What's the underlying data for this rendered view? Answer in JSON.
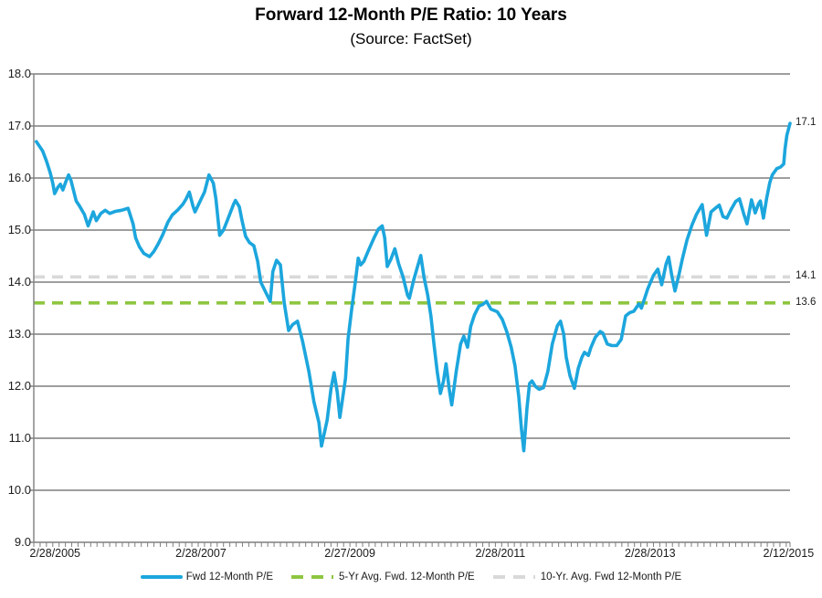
{
  "title": "Forward 12-Month P/E Ratio: 10 Years",
  "subtitle": "(Source: FactSet)",
  "chart_data": {
    "type": "line",
    "title": "Forward 12-Month P/E Ratio: 10 Years",
    "subtitle": "(Source: FactSet)",
    "grid": "horizontal",
    "legend_position": "bottom",
    "grid_color": "#7F7F7F",
    "x_domain": [
      0,
      119.6
    ],
    "x_unit": "months since 2/28/2005",
    "y_axis": {
      "min": 9,
      "max": 18,
      "step": 1
    },
    "x_axis": {
      "minor_tick_every_months": 1,
      "ticks": [
        {
          "label": "2/28/2005",
          "f": 0.028
        },
        {
          "label": "2/28/2007",
          "f": 0.221
        },
        {
          "label": "2/27/2009",
          "f": 0.418
        },
        {
          "label": "2/28/2011",
          "f": 0.617
        },
        {
          "label": "2/28/2013",
          "f": 0.815
        },
        {
          "label": "2/12/2015",
          "f": 0.998
        }
      ]
    },
    "series": [
      {
        "name": "Fwd 12-Month P/E",
        "color": "#1CA6DD",
        "style": "solid",
        "end_label": "17.1",
        "points": [
          [
            0.4,
            16.7
          ],
          [
            1.4,
            16.52
          ],
          [
            2.0,
            16.33
          ],
          [
            2.6,
            16.1
          ],
          [
            3.0,
            15.9
          ],
          [
            3.3,
            15.7
          ],
          [
            3.8,
            15.82
          ],
          [
            4.2,
            15.88
          ],
          [
            4.6,
            15.77
          ],
          [
            5.1,
            15.94
          ],
          [
            5.5,
            16.06
          ],
          [
            5.9,
            15.95
          ],
          [
            6.7,
            15.56
          ],
          [
            7.2,
            15.47
          ],
          [
            8.0,
            15.3
          ],
          [
            8.6,
            15.08
          ],
          [
            9.4,
            15.35
          ],
          [
            9.9,
            15.18
          ],
          [
            10.6,
            15.32
          ],
          [
            11.3,
            15.38
          ],
          [
            12.0,
            15.32
          ],
          [
            12.9,
            15.36
          ],
          [
            13.9,
            15.38
          ],
          [
            14.9,
            15.42
          ],
          [
            15.7,
            15.12
          ],
          [
            16.1,
            14.85
          ],
          [
            16.7,
            14.68
          ],
          [
            17.4,
            14.55
          ],
          [
            18.3,
            14.49
          ],
          [
            19.0,
            14.59
          ],
          [
            19.7,
            14.74
          ],
          [
            20.4,
            14.91
          ],
          [
            21.2,
            15.15
          ],
          [
            21.9,
            15.29
          ],
          [
            22.8,
            15.39
          ],
          [
            23.6,
            15.5
          ],
          [
            24.1,
            15.6
          ],
          [
            24.6,
            15.73
          ],
          [
            25.2,
            15.45
          ],
          [
            25.5,
            15.35
          ],
          [
            26.2,
            15.53
          ],
          [
            27.0,
            15.73
          ],
          [
            27.7,
            16.06
          ],
          [
            28.4,
            15.9
          ],
          [
            28.8,
            15.6
          ],
          [
            29.4,
            14.9
          ],
          [
            30.0,
            15.0
          ],
          [
            30.6,
            15.18
          ],
          [
            31.6,
            15.5
          ],
          [
            31.9,
            15.57
          ],
          [
            32.5,
            15.45
          ],
          [
            32.9,
            15.2
          ],
          [
            33.5,
            14.88
          ],
          [
            34.1,
            14.76
          ],
          [
            34.8,
            14.7
          ],
          [
            35.4,
            14.4
          ],
          [
            35.9,
            14.0
          ],
          [
            36.7,
            13.8
          ],
          [
            37.4,
            13.63
          ],
          [
            37.8,
            14.2
          ],
          [
            38.4,
            14.42
          ],
          [
            39.0,
            14.33
          ],
          [
            39.6,
            13.6
          ],
          [
            40.3,
            13.07
          ],
          [
            40.9,
            13.18
          ],
          [
            41.7,
            13.25
          ],
          [
            42.5,
            12.87
          ],
          [
            43.5,
            12.28
          ],
          [
            44.3,
            11.7
          ],
          [
            45.1,
            11.3
          ],
          [
            45.5,
            10.85
          ],
          [
            46.4,
            11.35
          ],
          [
            47.0,
            11.95
          ],
          [
            47.5,
            12.26
          ],
          [
            48.0,
            11.88
          ],
          [
            48.4,
            11.4
          ],
          [
            49.3,
            12.15
          ],
          [
            49.7,
            12.91
          ],
          [
            50.3,
            13.5
          ],
          [
            50.9,
            14.05
          ],
          [
            51.3,
            14.46
          ],
          [
            51.7,
            14.33
          ],
          [
            52.2,
            14.4
          ],
          [
            52.9,
            14.6
          ],
          [
            53.8,
            14.85
          ],
          [
            54.5,
            15.02
          ],
          [
            55.1,
            15.08
          ],
          [
            55.5,
            14.85
          ],
          [
            55.9,
            14.3
          ],
          [
            56.5,
            14.45
          ],
          [
            57.1,
            14.64
          ],
          [
            57.7,
            14.35
          ],
          [
            58.4,
            14.1
          ],
          [
            59.1,
            13.75
          ],
          [
            59.4,
            13.69
          ],
          [
            60.1,
            14.05
          ],
          [
            60.7,
            14.3
          ],
          [
            61.2,
            14.51
          ],
          [
            61.7,
            14.1
          ],
          [
            62.3,
            13.75
          ],
          [
            62.8,
            13.35
          ],
          [
            63.3,
            12.8
          ],
          [
            63.8,
            12.28
          ],
          [
            64.3,
            11.86
          ],
          [
            64.8,
            12.1
          ],
          [
            65.2,
            12.43
          ],
          [
            65.7,
            11.95
          ],
          [
            66.1,
            11.64
          ],
          [
            66.8,
            12.28
          ],
          [
            67.5,
            12.81
          ],
          [
            68.0,
            12.96
          ],
          [
            68.6,
            12.75
          ],
          [
            69.1,
            13.15
          ],
          [
            69.7,
            13.37
          ],
          [
            70.4,
            13.54
          ],
          [
            71.0,
            13.57
          ],
          [
            71.6,
            13.63
          ],
          [
            72.3,
            13.48
          ],
          [
            73.3,
            13.43
          ],
          [
            74.1,
            13.28
          ],
          [
            74.8,
            13.05
          ],
          [
            75.5,
            12.75
          ],
          [
            76.1,
            12.4
          ],
          [
            76.7,
            11.8
          ],
          [
            77.1,
            11.2
          ],
          [
            77.5,
            10.76
          ],
          [
            78.0,
            11.58
          ],
          [
            78.4,
            12.05
          ],
          [
            78.8,
            12.1
          ],
          [
            79.3,
            12.0
          ],
          [
            79.9,
            11.94
          ],
          [
            80.6,
            11.97
          ],
          [
            81.3,
            12.28
          ],
          [
            82.0,
            12.81
          ],
          [
            82.8,
            13.16
          ],
          [
            83.3,
            13.25
          ],
          [
            83.8,
            13.0
          ],
          [
            84.2,
            12.56
          ],
          [
            84.8,
            12.2
          ],
          [
            85.5,
            11.96
          ],
          [
            86.1,
            12.34
          ],
          [
            86.7,
            12.56
          ],
          [
            87.1,
            12.65
          ],
          [
            87.7,
            12.59
          ],
          [
            88.1,
            12.74
          ],
          [
            88.8,
            12.94
          ],
          [
            89.6,
            13.05
          ],
          [
            90.0,
            13.02
          ],
          [
            90.7,
            12.81
          ],
          [
            91.4,
            12.78
          ],
          [
            92.2,
            12.78
          ],
          [
            92.9,
            12.9
          ],
          [
            93.6,
            13.35
          ],
          [
            94.2,
            13.41
          ],
          [
            94.9,
            13.44
          ],
          [
            95.7,
            13.58
          ],
          [
            96.1,
            13.5
          ],
          [
            96.5,
            13.65
          ],
          [
            97.1,
            13.87
          ],
          [
            98.0,
            14.13
          ],
          [
            98.7,
            14.25
          ],
          [
            99.3,
            13.95
          ],
          [
            100.0,
            14.35
          ],
          [
            100.4,
            14.48
          ],
          [
            100.9,
            14.13
          ],
          [
            101.4,
            13.83
          ],
          [
            102.0,
            14.13
          ],
          [
            102.6,
            14.46
          ],
          [
            103.3,
            14.81
          ],
          [
            104.1,
            15.1
          ],
          [
            104.8,
            15.3
          ],
          [
            105.7,
            15.49
          ],
          [
            106.4,
            14.9
          ],
          [
            107.1,
            15.35
          ],
          [
            107.7,
            15.41
          ],
          [
            108.4,
            15.48
          ],
          [
            109.0,
            15.26
          ],
          [
            109.6,
            15.23
          ],
          [
            110.3,
            15.4
          ],
          [
            111.0,
            15.55
          ],
          [
            111.6,
            15.6
          ],
          [
            112.3,
            15.3
          ],
          [
            112.8,
            15.12
          ],
          [
            113.5,
            15.58
          ],
          [
            114.1,
            15.33
          ],
          [
            114.6,
            15.5
          ],
          [
            114.9,
            15.56
          ],
          [
            115.4,
            15.23
          ],
          [
            115.9,
            15.61
          ],
          [
            116.4,
            15.91
          ],
          [
            116.8,
            16.06
          ],
          [
            117.5,
            16.18
          ],
          [
            118.1,
            16.21
          ],
          [
            118.6,
            16.27
          ],
          [
            118.8,
            16.56
          ],
          [
            119.1,
            16.82
          ],
          [
            119.6,
            17.05
          ]
        ]
      },
      {
        "name": "5-Yr Avg. Fwd. 12-Month P/E",
        "color": "#8EC640",
        "style": "dashed",
        "value": 13.6,
        "end_label": "13.6"
      },
      {
        "name": "10-Yr. Avg. Fwd 12-Month P/E",
        "color": "#D9D9D9",
        "style": "dashed",
        "value": 14.1,
        "end_label": "14.1"
      }
    ]
  },
  "annotations": [
    {
      "label": "17.1",
      "at": 17.05
    },
    {
      "label": "14.1",
      "at": 14.1
    },
    {
      "label": "13.6",
      "at": 13.6
    }
  ]
}
